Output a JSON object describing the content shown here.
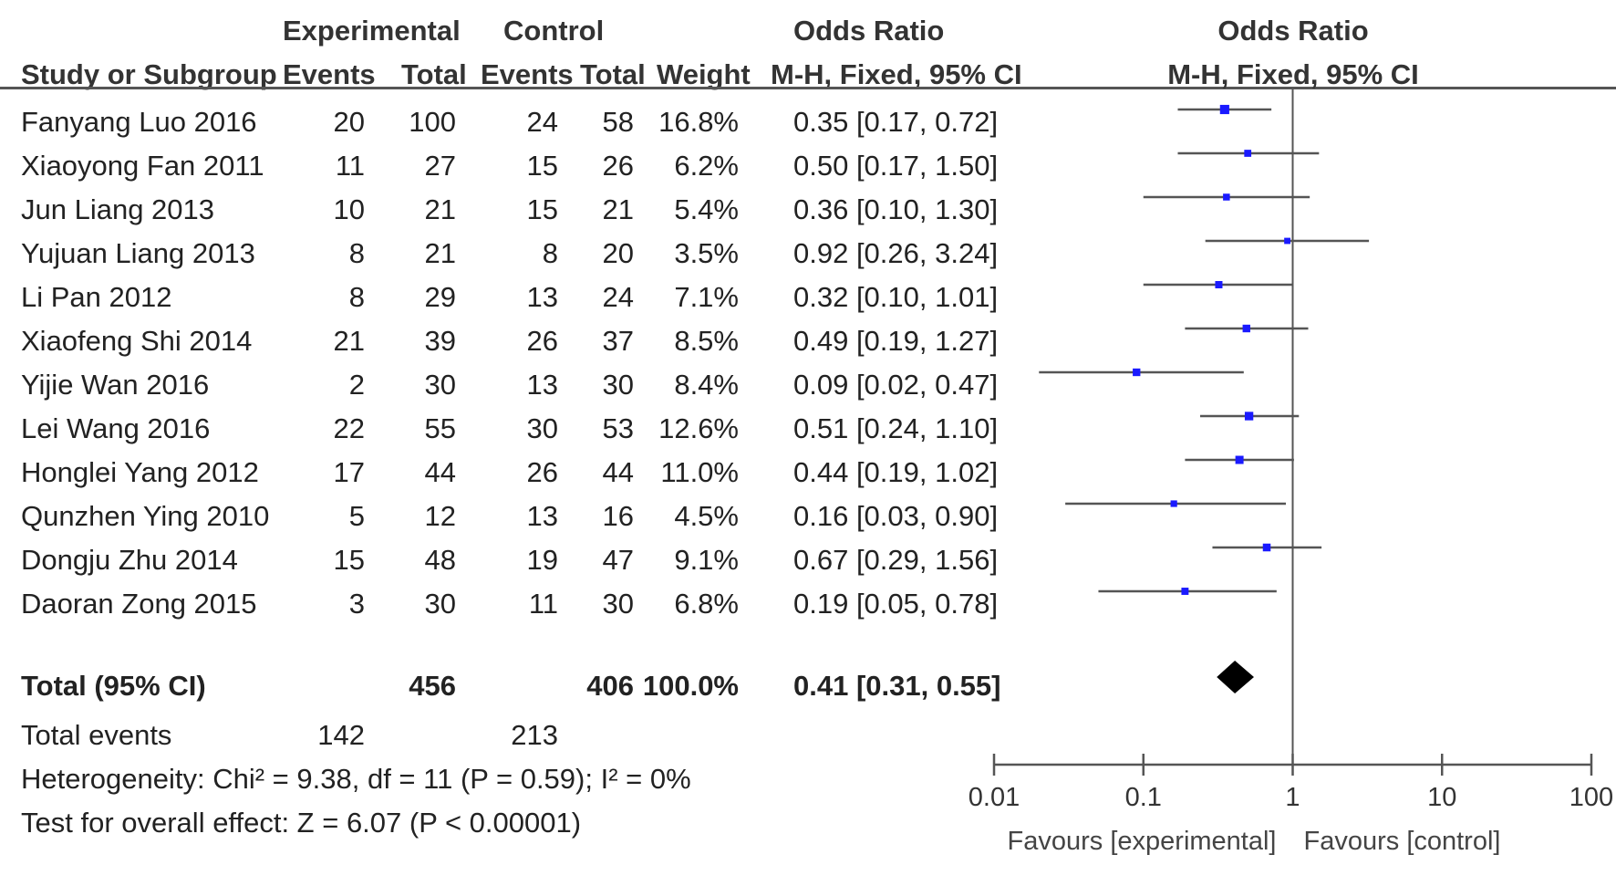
{
  "header": {
    "study_col": "Study or Subgroup",
    "experimental": "Experimental",
    "control": "Control",
    "events": "Events",
    "total": "Total",
    "weight": "Weight",
    "or_title": "Odds Ratio",
    "or_method": "M-H, Fixed, 95% CI",
    "plot_title": "Odds Ratio",
    "plot_method": "M-H, Fixed, 95% CI"
  },
  "studies": [
    {
      "name": "Fanyang Luo 2016",
      "exp_events": "20",
      "exp_total": "100",
      "ctl_events": "24",
      "ctl_total": "58",
      "weight": "16.8%",
      "or_text": "0.35 [0.17, 0.72]"
    },
    {
      "name": "Xiaoyong Fan 2011",
      "exp_events": "11",
      "exp_total": "27",
      "ctl_events": "15",
      "ctl_total": "26",
      "weight": "6.2%",
      "or_text": "0.50 [0.17, 1.50]"
    },
    {
      "name": "Jun Liang 2013",
      "exp_events": "10",
      "exp_total": "21",
      "ctl_events": "15",
      "ctl_total": "21",
      "weight": "5.4%",
      "or_text": "0.36 [0.10, 1.30]"
    },
    {
      "name": "Yujuan Liang 2013",
      "exp_events": "8",
      "exp_total": "21",
      "ctl_events": "8",
      "ctl_total": "20",
      "weight": "3.5%",
      "or_text": "0.92 [0.26, 3.24]"
    },
    {
      "name": "Li Pan 2012",
      "exp_events": "8",
      "exp_total": "29",
      "ctl_events": "13",
      "ctl_total": "24",
      "weight": "7.1%",
      "or_text": "0.32 [0.10, 1.01]"
    },
    {
      "name": "Xiaofeng Shi 2014",
      "exp_events": "21",
      "exp_total": "39",
      "ctl_events": "26",
      "ctl_total": "37",
      "weight": "8.5%",
      "or_text": "0.49 [0.19, 1.27]"
    },
    {
      "name": "Yijie Wan 2016",
      "exp_events": "2",
      "exp_total": "30",
      "ctl_events": "13",
      "ctl_total": "30",
      "weight": "8.4%",
      "or_text": "0.09 [0.02, 0.47]"
    },
    {
      "name": "Lei Wang 2016",
      "exp_events": "22",
      "exp_total": "55",
      "ctl_events": "30",
      "ctl_total": "53",
      "weight": "12.6%",
      "or_text": "0.51 [0.24, 1.10]"
    },
    {
      "name": "Honglei Yang 2012",
      "exp_events": "17",
      "exp_total": "44",
      "ctl_events": "26",
      "ctl_total": "44",
      "weight": "11.0%",
      "or_text": "0.44 [0.19, 1.02]"
    },
    {
      "name": "Qunzhen Ying 2010",
      "exp_events": "5",
      "exp_total": "12",
      "ctl_events": "13",
      "ctl_total": "16",
      "weight": "4.5%",
      "or_text": "0.16 [0.03, 0.90]"
    },
    {
      "name": "Dongju Zhu 2014",
      "exp_events": "15",
      "exp_total": "48",
      "ctl_events": "19",
      "ctl_total": "47",
      "weight": "9.1%",
      "or_text": "0.67 [0.29, 1.56]"
    },
    {
      "name": "Daoran Zong 2015",
      "exp_events": "3",
      "exp_total": "30",
      "ctl_events": "11",
      "ctl_total": "30",
      "weight": "6.8%",
      "or_text": "0.19 [0.05, 0.78]"
    }
  ],
  "total": {
    "label": "Total (95% CI)",
    "exp_total": "456",
    "ctl_total": "406",
    "weight": "100.0%",
    "or_text": "0.41 [0.31, 0.55]"
  },
  "total_events": {
    "label": "Total events",
    "exp": "142",
    "ctl": "213"
  },
  "heterogeneity": "Heterogeneity: Chi² = 9.38, df = 11 (P = 0.59); I² = 0%",
  "overall_effect": "Test for overall effect: Z = 6.07 (P < 0.00001)",
  "chart_data": {
    "type": "forest",
    "scale": "log",
    "xlim": [
      0.01,
      100
    ],
    "ticks": [
      0.01,
      0.1,
      1,
      10,
      100
    ],
    "tick_labels": [
      "0.01",
      "0.1",
      "1",
      "10",
      "100"
    ],
    "favours_left": "Favours [experimental]",
    "favours_right": "Favours [control]",
    "studies": [
      {
        "or": 0.35,
        "lo": 0.17,
        "hi": 0.72,
        "weight": 16.8
      },
      {
        "or": 0.5,
        "lo": 0.17,
        "hi": 1.5,
        "weight": 6.2
      },
      {
        "or": 0.36,
        "lo": 0.1,
        "hi": 1.3,
        "weight": 5.4
      },
      {
        "or": 0.92,
        "lo": 0.26,
        "hi": 3.24,
        "weight": 3.5
      },
      {
        "or": 0.32,
        "lo": 0.1,
        "hi": 1.01,
        "weight": 7.1
      },
      {
        "or": 0.49,
        "lo": 0.19,
        "hi": 1.27,
        "weight": 8.5
      },
      {
        "or": 0.09,
        "lo": 0.02,
        "hi": 0.47,
        "weight": 8.4
      },
      {
        "or": 0.51,
        "lo": 0.24,
        "hi": 1.1,
        "weight": 12.6
      },
      {
        "or": 0.44,
        "lo": 0.19,
        "hi": 1.02,
        "weight": 11.0
      },
      {
        "or": 0.16,
        "lo": 0.03,
        "hi": 0.9,
        "weight": 4.5
      },
      {
        "or": 0.67,
        "lo": 0.29,
        "hi": 1.56,
        "weight": 9.1
      },
      {
        "or": 0.19,
        "lo": 0.05,
        "hi": 0.78,
        "weight": 6.8
      }
    ],
    "pooled": {
      "or": 0.41,
      "lo": 0.31,
      "hi": 0.55
    },
    "colors": {
      "point": "#1a1aff",
      "line": "#555555",
      "diamond": "#000000",
      "axis": "#555555"
    }
  }
}
